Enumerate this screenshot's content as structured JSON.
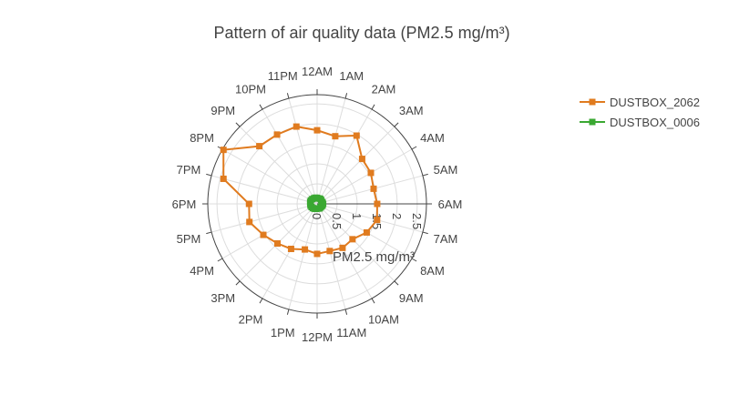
{
  "chart_data": {
    "type": "polar",
    "title": "Pattern of air quality data (PM2.5 mg/m³)",
    "radial_axis_title": "PM2.5 mg/m³",
    "categories": [
      "12AM",
      "1AM",
      "2AM",
      "3AM",
      "4AM",
      "5AM",
      "6AM",
      "7AM",
      "8AM",
      "9AM",
      "10AM",
      "11AM",
      "12PM",
      "1PM",
      "2PM",
      "3PM",
      "4PM",
      "5PM",
      "6PM",
      "7PM",
      "8PM",
      "9PM",
      "10PM",
      "11PM"
    ],
    "series": [
      {
        "name": "DUSTBOX_2062",
        "color": "#e07b1f",
        "values": [
          1.84,
          1.75,
          1.97,
          1.59,
          1.55,
          1.46,
          1.5,
          1.55,
          1.43,
          1.25,
          1.27,
          1.22,
          1.25,
          1.18,
          1.3,
          1.4,
          1.55,
          1.75,
          1.7,
          2.42,
          2.7,
          2.04,
          2.0,
          2.0
        ]
      },
      {
        "name": "DUSTBOX_0006",
        "color": "#3aa832",
        "values": [
          0.15,
          0.14,
          0.15,
          0.14,
          0.13,
          0.14,
          0.15,
          0.14,
          0.13,
          0.12,
          0.13,
          0.12,
          0.12,
          0.13,
          0.14,
          0.15,
          0.16,
          0.17,
          0.17,
          0.18,
          0.18,
          0.17,
          0.16,
          0.16
        ]
      }
    ],
    "rlim": [
      0,
      2.73
    ],
    "rticks": [
      0,
      0.5,
      1,
      1.5,
      2,
      2.5
    ],
    "grid": true
  }
}
